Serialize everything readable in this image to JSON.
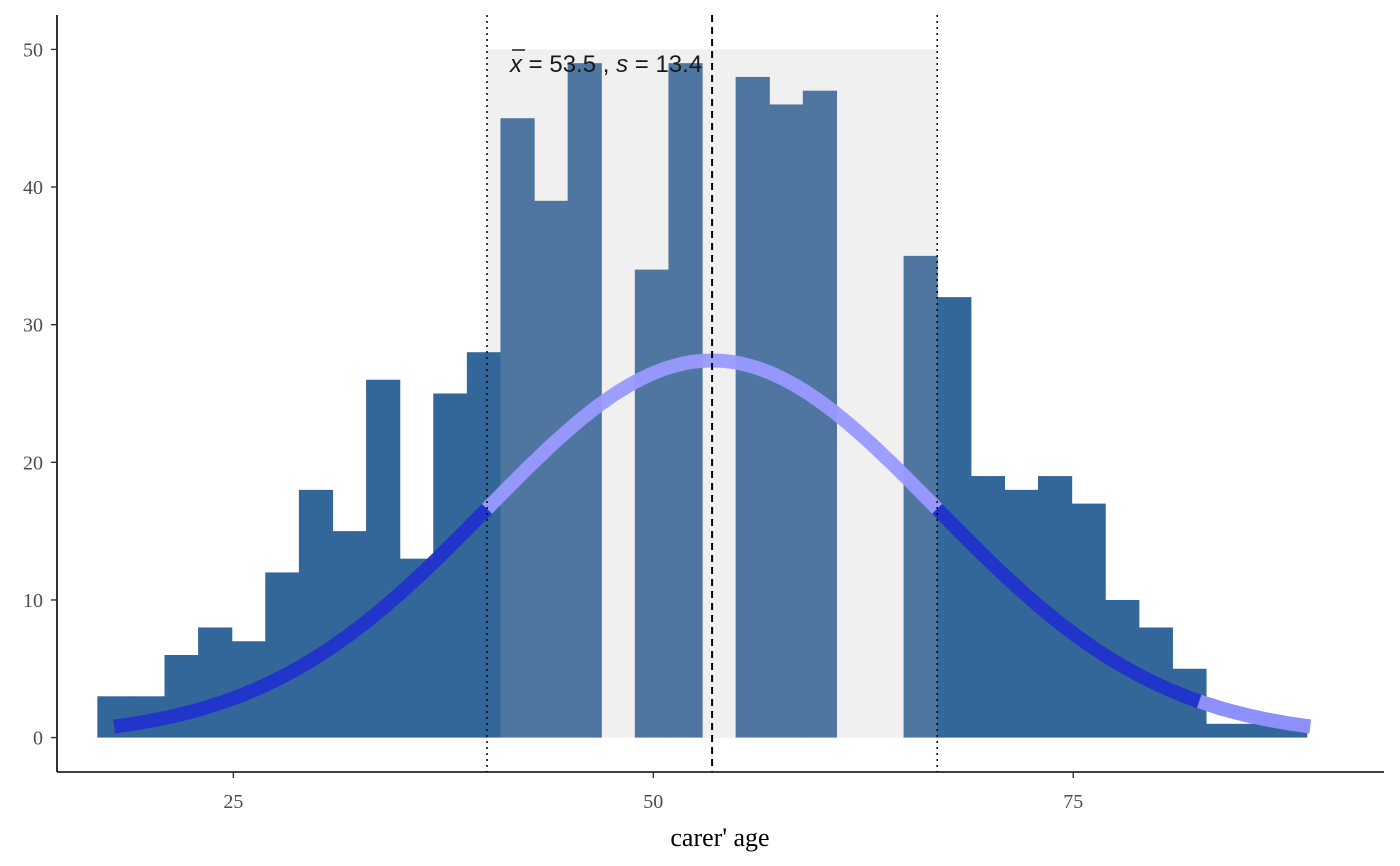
{
  "chart_data": {
    "type": "bar",
    "subtype": "histogram",
    "xlabel": "carer' age",
    "ylabel": "",
    "title": "",
    "xlim": [
      14.5,
      93.5
    ],
    "ylim": [
      -2.5,
      52.5
    ],
    "x_ticks": [
      25,
      50,
      75
    ],
    "x_tick_labels": [
      "25",
      "50",
      "75"
    ],
    "y_ticks": [
      0,
      10,
      20,
      30,
      40,
      50
    ],
    "y_tick_labels": [
      "0",
      "10",
      "20",
      "30",
      "40",
      "50"
    ],
    "grid": false,
    "legend": "none",
    "bin_width": 2,
    "bin_edges_start": 16.9,
    "counts": [
      3,
      3,
      6,
      8,
      7,
      12,
      18,
      15,
      26,
      13,
      25,
      28,
      45,
      39,
      49,
      0,
      34,
      49,
      0,
      48,
      46,
      47,
      0,
      0,
      35,
      32,
      19,
      18,
      19,
      17,
      10,
      8,
      5,
      1,
      1,
      1
    ],
    "mean": 53.5,
    "sd": 13.4,
    "sd_band": [
      40.1,
      66.9
    ],
    "sd_band_height": 50,
    "normal_curve": {
      "mean": 53.5,
      "sd": 13.4,
      "peak": 27.4,
      "x_range": [
        17.9,
        89.1
      ]
    },
    "annotation": {
      "mean_label": "53.5",
      "sd_label": "13.4"
    },
    "colors": {
      "bar": "#336699",
      "bar_in_band": "#4e76a0",
      "band": "#f0f0f0",
      "curve": "#2233cc",
      "curve_in_band": "#9999ff",
      "axis": "#000000"
    }
  }
}
